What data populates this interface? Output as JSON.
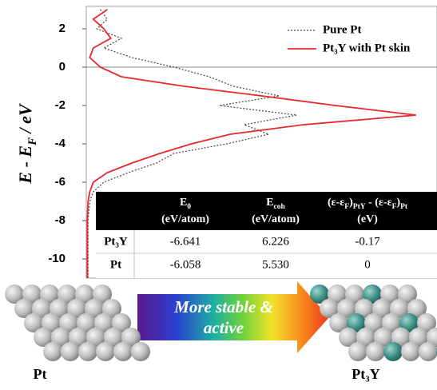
{
  "chart_data": {
    "type": "line",
    "y_label": [
      {
        "t": "E - E"
      },
      {
        "t": "F",
        "sub": true
      },
      {
        "t": " / eV"
      }
    ],
    "y": [
      3,
      2.5,
      2,
      1.5,
      1,
      0.5,
      0,
      -0.5,
      -1,
      -1.5,
      -2,
      -2.5,
      -3,
      -3.5,
      -4,
      -4.5,
      -5,
      -5.5,
      -6,
      -6.5,
      -7,
      -8,
      -9,
      -10,
      -11
    ],
    "xlim": [
      0,
      1
    ],
    "ylim": [
      -11,
      3
    ],
    "yticks": [
      2,
      0,
      -2,
      -4,
      -6,
      -8,
      -10
    ],
    "fermi_level": 0,
    "series": [
      {
        "name": "Pure Pt",
        "color": "#444444",
        "dash": true,
        "values": [
          0.04,
          0.06,
          0.03,
          0.1,
          0.05,
          0.13,
          0.25,
          0.35,
          0.42,
          0.55,
          0.38,
          0.6,
          0.45,
          0.52,
          0.4,
          0.25,
          0.2,
          0.12,
          0.05,
          0.02,
          0.01,
          0.005,
          0.005,
          0.005,
          0.005
        ]
      },
      {
        "name": "Pt₃Y with Pt skin",
        "color": "#e8282d",
        "dash": false,
        "values": [
          0.06,
          0.02,
          0.05,
          0.07,
          0.02,
          0.01,
          0.04,
          0.1,
          0.28,
          0.5,
          0.71,
          0.94,
          0.62,
          0.41,
          0.3,
          0.21,
          0.13,
          0.06,
          0.02,
          0.01,
          0.005,
          0.003,
          0.003,
          0.003,
          0.003
        ]
      }
    ]
  },
  "table": {
    "header": [
      [
        [
          {
            "t": "E"
          },
          {
            "t": "0",
            "sub": true
          }
        ],
        "(eV/atom)"
      ],
      [
        [
          {
            "t": "E"
          },
          {
            "t": "coh",
            "sub": true
          }
        ],
        "(eV/atom)"
      ],
      [
        [
          {
            "t": "(ε-ε"
          },
          {
            "t": "F",
            "sub": true
          },
          {
            "t": ")"
          },
          {
            "t": "PtY",
            "sub": true
          },
          {
            "t": " - (ε-ε"
          },
          {
            "t": "F",
            "sub": true
          },
          {
            "t": ")"
          },
          {
            "t": "Pt",
            "sub": true
          }
        ],
        "(eV)"
      ]
    ],
    "rows": [
      [
        "Pt₃Y",
        "-6.641",
        "6.226",
        "-0.17"
      ],
      [
        "Pt",
        "-6.058",
        "5.530",
        "0"
      ]
    ]
  },
  "illustration": {
    "left_label": "Pt",
    "right_label": "Pt₃Y",
    "arrow_text": [
      "More stable &",
      "active"
    ]
  }
}
